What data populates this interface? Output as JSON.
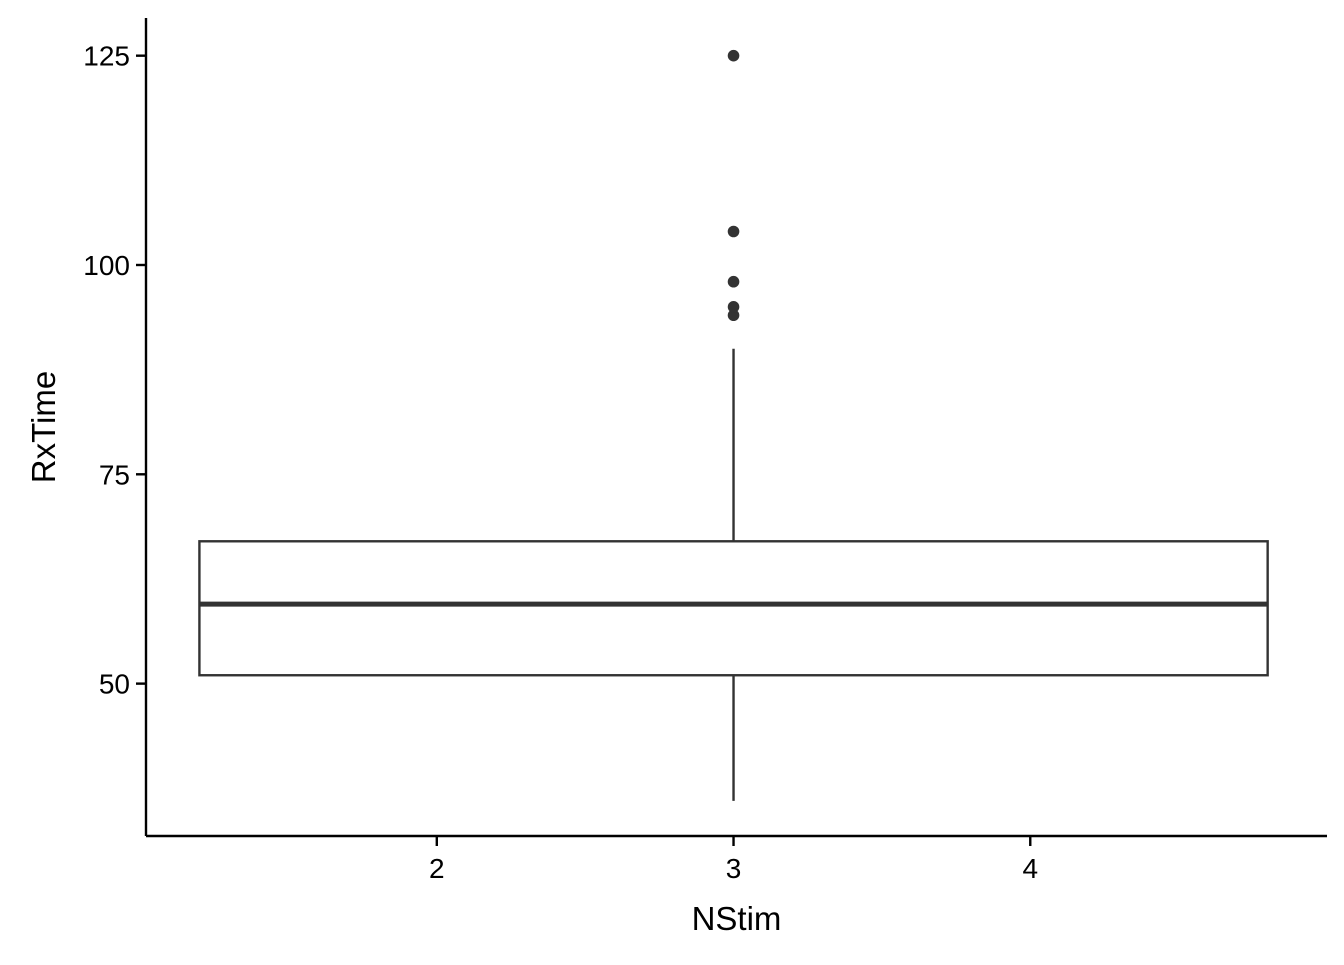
{
  "chart_data": {
    "type": "boxplot",
    "title": "",
    "xlabel": "NStim",
    "ylabel": "RxTime",
    "x_ticks": [
      2,
      3,
      4
    ],
    "y_ticks": [
      50,
      75,
      100,
      125
    ],
    "xlim": [
      1.02,
      5.0
    ],
    "ylim": [
      31.8,
      129.5
    ],
    "grid": false,
    "legend": "none",
    "box": {
      "x_center": 3,
      "x_min": 1.2,
      "x_max": 4.8,
      "whisker_low": 36,
      "q1": 51,
      "median": 59.5,
      "q3": 67,
      "whisker_high": 90
    },
    "outliers": [
      {
        "x": 3,
        "y": 94
      },
      {
        "x": 3,
        "y": 95
      },
      {
        "x": 3,
        "y": 98
      },
      {
        "x": 3,
        "y": 104
      },
      {
        "x": 3,
        "y": 125
      }
    ],
    "colors": {
      "box_stroke": "#333333",
      "box_fill": "#ffffff",
      "axis": "#000000",
      "point": "#333333"
    }
  }
}
